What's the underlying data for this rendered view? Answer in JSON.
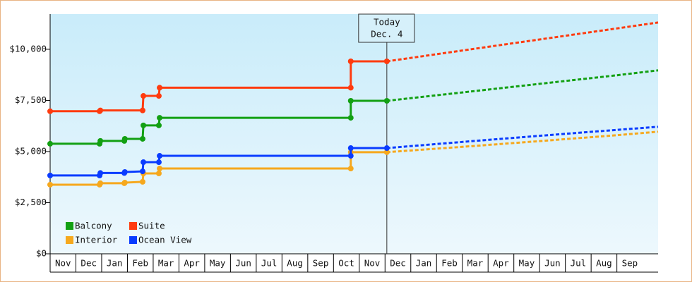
{
  "chart_data": {
    "type": "line",
    "categories": [
      "Nov",
      "Dec",
      "Jan",
      "Feb",
      "Mar",
      "Apr",
      "May",
      "Jun",
      "Jul",
      "Aug",
      "Sep",
      "Oct",
      "Nov",
      "Dec",
      "Jan",
      "Feb",
      "Mar",
      "Apr",
      "May",
      "Jun",
      "Jul",
      "Aug",
      "Sep"
    ],
    "xlim": [
      0,
      23.6
    ],
    "ylim": [
      0,
      11720
    ],
    "yticks": [
      {
        "value": 0,
        "label": "$0"
      },
      {
        "value": 2500,
        "label": "$2,500"
      },
      {
        "value": 5000,
        "label": "$5,000"
      },
      {
        "value": 7500,
        "label": "$7,500"
      },
      {
        "value": 10000,
        "label": "$10,000"
      }
    ],
    "today": {
      "x": 13.07,
      "label": [
        "Today",
        "Dec. 4"
      ]
    },
    "legend": "lower left",
    "series": [
      {
        "name": "Balcony",
        "color": "#13a013",
        "x": [
          0,
          1.92,
          1.95,
          2.88,
          2.9,
          3.59,
          3.62,
          4.22,
          4.25,
          11.67,
          11.67,
          13.07
        ],
        "values": [
          5380,
          5380,
          5520,
          5520,
          5620,
          5620,
          6280,
          6280,
          6650,
          6650,
          7480,
          7480
        ],
        "forecast_x": [
          13.07,
          16,
          19,
          22,
          23.6
        ],
        "forecast_values": [
          7480,
          7890,
          8310,
          8730,
          8970
        ]
      },
      {
        "name": "Suite",
        "color": "#ff3b0f",
        "x": [
          0,
          1.92,
          1.95,
          3.59,
          3.62,
          4.22,
          4.25,
          11.67,
          11.67,
          13.07
        ],
        "values": [
          6970,
          6970,
          7010,
          7010,
          7720,
          7720,
          8120,
          8120,
          9410,
          9410
        ],
        "forecast_x": [
          13.07,
          16,
          19,
          22,
          23.6
        ],
        "forecast_values": [
          9410,
          9940,
          10480,
          11020,
          11310
        ]
      },
      {
        "name": "Interior",
        "color": "#f6a81d",
        "x": [
          0,
          1.92,
          1.95,
          2.88,
          2.9,
          3.59,
          3.62,
          4.22,
          4.25,
          11.67,
          11.67,
          13.07
        ],
        "values": [
          3380,
          3380,
          3450,
          3450,
          3480,
          3520,
          3930,
          3930,
          4170,
          4170,
          4970,
          4970
        ],
        "forecast_x": [
          13.07,
          16,
          19,
          22,
          23.6
        ],
        "forecast_values": [
          4970,
          5230,
          5510,
          5800,
          5970
        ]
      },
      {
        "name": "Ocean View",
        "color": "#0a3cff",
        "x": [
          0,
          1.92,
          1.95,
          2.88,
          2.9,
          3.59,
          3.62,
          4.22,
          4.25,
          11.67,
          11.67,
          13.07
        ],
        "values": [
          3830,
          3830,
          3950,
          3950,
          4000,
          4030,
          4480,
          4480,
          4790,
          4790,
          5170,
          5170
        ],
        "forecast_x": [
          13.07,
          16,
          19,
          22,
          23.6
        ],
        "forecast_values": [
          5170,
          5470,
          5770,
          6060,
          6210
        ]
      }
    ]
  }
}
